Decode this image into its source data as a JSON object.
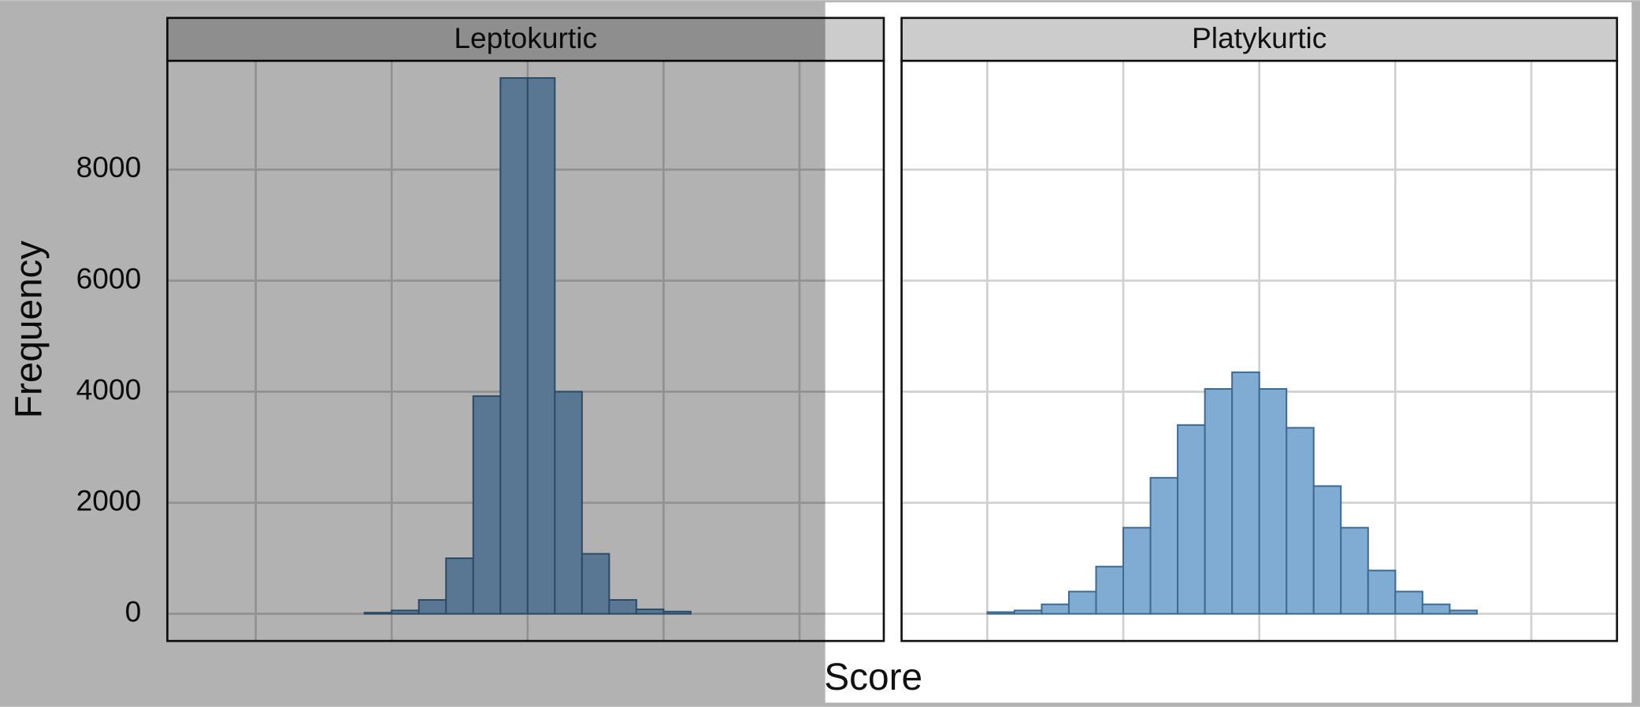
{
  "chart_data": [
    {
      "type": "histogram",
      "title": "Leptokurtic",
      "bins": [
        -2.4,
        -2.2,
        -2.0,
        -1.8,
        -1.6,
        -1.4,
        -1.2,
        -1.0,
        -0.8,
        -0.6,
        -0.4,
        -0.2,
        0,
        0.2,
        0.4,
        0.6,
        0.8,
        1.0,
        1.2,
        1.4,
        1.6,
        1.8,
        2.0,
        2.2,
        2.4
      ],
      "values": [
        0,
        0,
        0,
        0,
        0,
        0,
        20,
        60,
        250,
        1000,
        3920,
        9650,
        9650,
        4000,
        1080,
        250,
        80,
        40,
        0,
        0,
        0,
        0,
        0,
        0
      ],
      "color": "#80abd2",
      "xlim": [
        -2.65,
        2.62
      ],
      "xticks": [
        -2,
        -1,
        0,
        1,
        2
      ],
      "ylim": [
        -490,
        9960
      ],
      "yticks": [
        0,
        2000,
        4000,
        6000,
        8000
      ],
      "grid": true
    },
    {
      "type": "histogram",
      "title": "Platykurtic",
      "bins": [
        -2.4,
        -2.2,
        -2.0,
        -1.8,
        -1.6,
        -1.4,
        -1.2,
        -1.0,
        -0.8,
        -0.6,
        -0.4,
        -0.2,
        0,
        0.2,
        0.4,
        0.6,
        0.8,
        1.0,
        1.2,
        1.4,
        1.6,
        1.8,
        2.0,
        2.2,
        2.4
      ],
      "values": [
        0,
        0,
        30,
        60,
        170,
        400,
        850,
        1550,
        2450,
        3400,
        4050,
        4350,
        4050,
        3350,
        2300,
        1550,
        780,
        400,
        170,
        60,
        0,
        0,
        0,
        0
      ],
      "color": "#80abd2",
      "xlim": [
        -2.63,
        2.63
      ],
      "xticks": [
        -2,
        -1,
        0,
        1,
        2
      ],
      "ylim": [
        -490,
        9960
      ],
      "yticks": [
        0,
        2000,
        4000,
        6000,
        8000
      ],
      "grid": true
    }
  ],
  "shared_axes": {
    "xlabel": "Score",
    "ylabel": "Frequency"
  }
}
